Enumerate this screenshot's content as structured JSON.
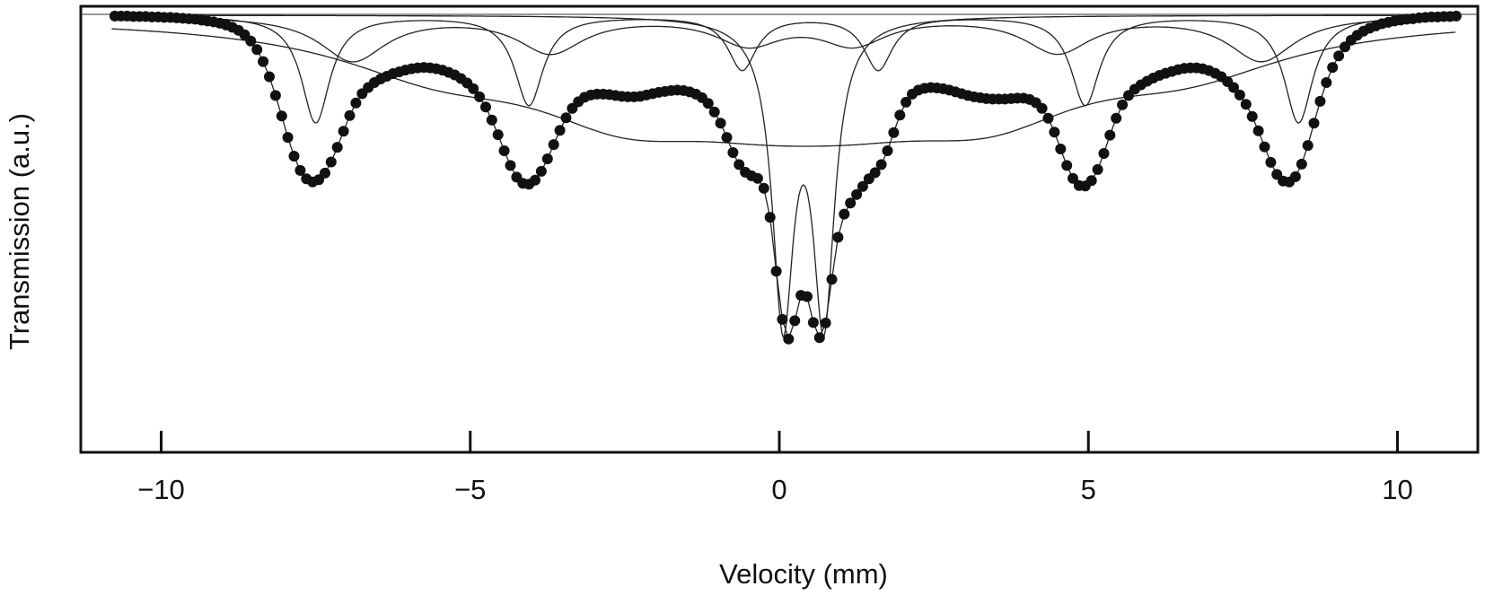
{
  "chart_data": {
    "type": "scatter",
    "title": "",
    "xlabel": "Velocity (mm)",
    "ylabel": "Transmission (a.u.)",
    "xlim": [
      -11.3,
      11.3
    ],
    "ylim": [
      0.0,
      1.0
    ],
    "xticks": [
      -10,
      -5,
      0,
      5,
      10
    ],
    "xtick_labels": [
      "−10",
      "−5",
      "0",
      "5",
      "10"
    ],
    "yticks": [],
    "grid": false,
    "legend": "none",
    "colors": {
      "points": "#111111",
      "lines": "#222222",
      "axes": "#111111"
    },
    "components": [
      {
        "kind": "sextet",
        "positions": [
          -7.5,
          -4.05,
          -0.6,
          1.6,
          4.95,
          8.4
        ],
        "depths": [
          0.24,
          0.2,
          0.12,
          0.12,
          0.2,
          0.24
        ],
        "width": 0.28
      },
      {
        "kind": "sextet",
        "positions": [
          -6.9,
          -3.7,
          -0.5,
          1.2,
          4.5,
          7.8
        ],
        "depths": [
          0.1,
          0.08,
          0.06,
          0.06,
          0.08,
          0.1
        ],
        "width": 0.65
      },
      {
        "kind": "sextet",
        "positions": [
          -5.5,
          -2.5,
          -0.3,
          1.2,
          3.4,
          6.6
        ],
        "depths": [
          0.09,
          0.16,
          0.1,
          0.1,
          0.16,
          0.09
        ],
        "width": 2.0
      },
      {
        "kind": "doublet",
        "positions": [
          0.06,
          0.72
        ],
        "depths": [
          0.66,
          0.66
        ],
        "width": 0.21
      }
    ],
    "points": [
      [
        -10.75,
        0.978
      ],
      [
        -10.65,
        0.978
      ],
      [
        -10.55,
        0.978
      ],
      [
        -10.45,
        0.977
      ],
      [
        -10.35,
        0.977
      ],
      [
        -10.25,
        0.977
      ],
      [
        -10.15,
        0.976
      ],
      [
        -10.05,
        0.976
      ],
      [
        -9.95,
        0.975
      ],
      [
        -9.85,
        0.975
      ],
      [
        -9.75,
        0.974
      ],
      [
        -9.65,
        0.973
      ],
      [
        -9.55,
        0.972
      ],
      [
        -9.45,
        0.971
      ],
      [
        -9.35,
        0.969
      ],
      [
        -9.25,
        0.967
      ],
      [
        -9.15,
        0.965
      ],
      [
        -9.05,
        0.962
      ],
      [
        -8.95,
        0.958
      ],
      [
        -8.85,
        0.953
      ],
      [
        -8.75,
        0.946
      ],
      [
        -8.65,
        0.936
      ],
      [
        -8.55,
        0.922
      ],
      [
        -8.45,
        0.903
      ],
      [
        -8.35,
        0.876
      ],
      [
        -8.25,
        0.842
      ],
      [
        -8.15,
        0.8
      ],
      [
        -8.05,
        0.754
      ],
      [
        -7.95,
        0.706
      ],
      [
        -7.85,
        0.664
      ],
      [
        -7.75,
        0.632
      ],
      [
        -7.65,
        0.613
      ],
      [
        -7.55,
        0.606
      ],
      [
        -7.45,
        0.611
      ],
      [
        -7.35,
        0.626
      ],
      [
        -7.25,
        0.651
      ],
      [
        -7.15,
        0.684
      ],
      [
        -7.05,
        0.72
      ],
      [
        -6.95,
        0.755
      ],
      [
        -6.85,
        0.783
      ],
      [
        -6.75,
        0.804
      ],
      [
        -6.65,
        0.818
      ],
      [
        -6.55,
        0.829
      ],
      [
        -6.45,
        0.837
      ],
      [
        -6.35,
        0.843
      ],
      [
        -6.25,
        0.849
      ],
      [
        -6.15,
        0.853
      ],
      [
        -6.05,
        0.857
      ],
      [
        -5.95,
        0.86
      ],
      [
        -5.85,
        0.862
      ],
      [
        -5.75,
        0.863
      ],
      [
        -5.65,
        0.862
      ],
      [
        -5.55,
        0.86
      ],
      [
        -5.45,
        0.857
      ],
      [
        -5.35,
        0.852
      ],
      [
        -5.25,
        0.846
      ],
      [
        -5.15,
        0.838
      ],
      [
        -5.05,
        0.828
      ],
      [
        -4.95,
        0.815
      ],
      [
        -4.85,
        0.797
      ],
      [
        -4.75,
        0.774
      ],
      [
        -4.65,
        0.745
      ],
      [
        -4.55,
        0.712
      ],
      [
        -4.45,
        0.676
      ],
      [
        -4.35,
        0.643
      ],
      [
        -4.25,
        0.617
      ],
      [
        -4.15,
        0.603
      ],
      [
        -4.05,
        0.601
      ],
      [
        -3.95,
        0.61
      ],
      [
        -3.85,
        0.63
      ],
      [
        -3.75,
        0.658
      ],
      [
        -3.65,
        0.69
      ],
      [
        -3.55,
        0.722
      ],
      [
        -3.45,
        0.75
      ],
      [
        -3.35,
        0.771
      ],
      [
        -3.25,
        0.786
      ],
      [
        -3.15,
        0.796
      ],
      [
        -3.05,
        0.801
      ],
      [
        -2.95,
        0.803
      ],
      [
        -2.85,
        0.803
      ],
      [
        -2.75,
        0.802
      ],
      [
        -2.65,
        0.8
      ],
      [
        -2.55,
        0.798
      ],
      [
        -2.45,
        0.797
      ],
      [
        -2.35,
        0.797
      ],
      [
        -2.25,
        0.798
      ],
      [
        -2.15,
        0.801
      ],
      [
        -2.05,
        0.804
      ],
      [
        -1.95,
        0.807
      ],
      [
        -1.85,
        0.809
      ],
      [
        -1.75,
        0.811
      ],
      [
        -1.65,
        0.812
      ],
      [
        -1.55,
        0.811
      ],
      [
        -1.45,
        0.808
      ],
      [
        -1.35,
        0.803
      ],
      [
        -1.25,
        0.795
      ],
      [
        -1.15,
        0.782
      ],
      [
        -1.05,
        0.763
      ],
      [
        -0.95,
        0.738
      ],
      [
        -0.85,
        0.706
      ],
      [
        -0.75,
        0.672
      ],
      [
        -0.65,
        0.645
      ],
      [
        -0.55,
        0.628
      ],
      [
        -0.45,
        0.62
      ],
      [
        -0.35,
        0.614
      ],
      [
        -0.25,
        0.592
      ],
      [
        -0.15,
        0.527
      ],
      [
        -0.05,
        0.406
      ],
      [
        0.05,
        0.298
      ],
      [
        0.15,
        0.254
      ],
      [
        0.25,
        0.295
      ],
      [
        0.35,
        0.352
      ],
      [
        0.45,
        0.349
      ],
      [
        0.55,
        0.291
      ],
      [
        0.65,
        0.257
      ],
      [
        0.75,
        0.29
      ],
      [
        0.85,
        0.388
      ],
      [
        0.95,
        0.482
      ],
      [
        1.05,
        0.534
      ],
      [
        1.15,
        0.559
      ],
      [
        1.25,
        0.578
      ],
      [
        1.35,
        0.596
      ],
      [
        1.45,
        0.613
      ],
      [
        1.55,
        0.627
      ],
      [
        1.65,
        0.645
      ],
      [
        1.75,
        0.676
      ],
      [
        1.85,
        0.717
      ],
      [
        1.95,
        0.756
      ],
      [
        2.05,
        0.785
      ],
      [
        2.15,
        0.803
      ],
      [
        2.25,
        0.812
      ],
      [
        2.35,
        0.816
      ],
      [
        2.45,
        0.818
      ],
      [
        2.55,
        0.817
      ],
      [
        2.65,
        0.815
      ],
      [
        2.75,
        0.812
      ],
      [
        2.85,
        0.808
      ],
      [
        2.95,
        0.804
      ],
      [
        3.05,
        0.8
      ],
      [
        3.15,
        0.797
      ],
      [
        3.25,
        0.795
      ],
      [
        3.35,
        0.793
      ],
      [
        3.45,
        0.792
      ],
      [
        3.55,
        0.792
      ],
      [
        3.65,
        0.792
      ],
      [
        3.75,
        0.793
      ],
      [
        3.85,
        0.794
      ],
      [
        3.95,
        0.794
      ],
      [
        4.05,
        0.791
      ],
      [
        4.15,
        0.784
      ],
      [
        4.25,
        0.771
      ],
      [
        4.35,
        0.749
      ],
      [
        4.45,
        0.718
      ],
      [
        4.55,
        0.68
      ],
      [
        4.65,
        0.643
      ],
      [
        4.75,
        0.614
      ],
      [
        4.85,
        0.598
      ],
      [
        4.95,
        0.597
      ],
      [
        5.05,
        0.609
      ],
      [
        5.15,
        0.634
      ],
      [
        5.25,
        0.67
      ],
      [
        5.35,
        0.711
      ],
      [
        5.45,
        0.749
      ],
      [
        5.55,
        0.779
      ],
      [
        5.65,
        0.8
      ],
      [
        5.75,
        0.814
      ],
      [
        5.85,
        0.824
      ],
      [
        5.95,
        0.832
      ],
      [
        6.05,
        0.839
      ],
      [
        6.15,
        0.845
      ],
      [
        6.25,
        0.85
      ],
      [
        6.35,
        0.854
      ],
      [
        6.45,
        0.858
      ],
      [
        6.55,
        0.861
      ],
      [
        6.65,
        0.862
      ],
      [
        6.75,
        0.862
      ],
      [
        6.85,
        0.86
      ],
      [
        6.95,
        0.856
      ],
      [
        7.05,
        0.85
      ],
      [
        7.15,
        0.842
      ],
      [
        7.25,
        0.831
      ],
      [
        7.35,
        0.818
      ],
      [
        7.45,
        0.801
      ],
      [
        7.55,
        0.78
      ],
      [
        7.65,
        0.753
      ],
      [
        7.75,
        0.721
      ],
      [
        7.85,
        0.685
      ],
      [
        7.95,
        0.65
      ],
      [
        8.05,
        0.623
      ],
      [
        8.15,
        0.608
      ],
      [
        8.25,
        0.606
      ],
      [
        8.35,
        0.618
      ],
      [
        8.45,
        0.646
      ],
      [
        8.55,
        0.688
      ],
      [
        8.65,
        0.738
      ],
      [
        8.75,
        0.787
      ],
      [
        8.85,
        0.829
      ],
      [
        8.95,
        0.863
      ],
      [
        9.05,
        0.889
      ],
      [
        9.15,
        0.909
      ],
      [
        9.25,
        0.924
      ],
      [
        9.35,
        0.935
      ],
      [
        9.45,
        0.944
      ],
      [
        9.55,
        0.951
      ],
      [
        9.65,
        0.956
      ],
      [
        9.75,
        0.961
      ],
      [
        9.85,
        0.964
      ],
      [
        9.95,
        0.967
      ],
      [
        10.05,
        0.969
      ],
      [
        10.15,
        0.971
      ],
      [
        10.25,
        0.972
      ],
      [
        10.35,
        0.974
      ],
      [
        10.45,
        0.975
      ],
      [
        10.55,
        0.976
      ],
      [
        10.65,
        0.976
      ],
      [
        10.75,
        0.977
      ],
      [
        10.85,
        0.977
      ],
      [
        10.95,
        0.978
      ]
    ]
  }
}
